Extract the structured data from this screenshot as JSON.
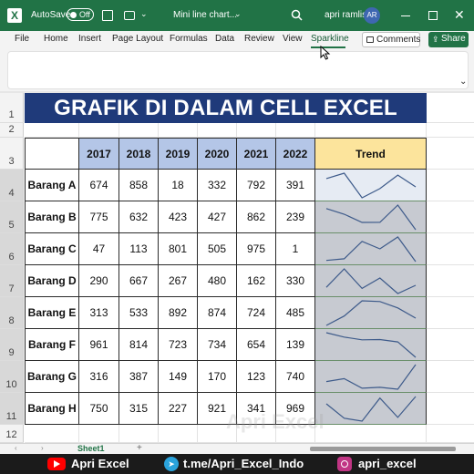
{
  "window": {
    "autosave_label": "AutoSave",
    "autosave_state": "Off",
    "file_title": "Mini line chart...",
    "user_name": "apri ramlis",
    "user_initials": "AR"
  },
  "ribbon": {
    "tabs": [
      "File",
      "Home",
      "Insert",
      "Page Layout",
      "Formulas",
      "Data",
      "Review",
      "View",
      "Sparkline"
    ],
    "active_tab": "Sparkline",
    "comments_label": "Comments",
    "share_label": "Share"
  },
  "sheet": {
    "row_numbers": [
      "1",
      "2",
      "3",
      "4",
      "5",
      "6",
      "7",
      "8",
      "9",
      "10",
      "11",
      "12"
    ],
    "title": "GRAFIK DI DALAM CELL EXCEL",
    "years": [
      "2017",
      "2018",
      "2019",
      "2020",
      "2021",
      "2022"
    ],
    "trend_label": "Trend",
    "items": [
      {
        "name": "Barang A",
        "values": [
          674,
          858,
          18,
          332,
          792,
          391
        ]
      },
      {
        "name": "Barang B",
        "values": [
          775,
          632,
          423,
          427,
          862,
          239
        ]
      },
      {
        "name": "Barang C",
        "values": [
          47,
          113,
          801,
          505,
          975,
          1
        ]
      },
      {
        "name": "Barang D",
        "values": [
          290,
          667,
          267,
          480,
          162,
          330
        ]
      },
      {
        "name": "Barang E",
        "values": [
          313,
          533,
          892,
          874,
          724,
          485
        ]
      },
      {
        "name": "Barang F",
        "values": [
          961,
          814,
          723,
          734,
          654,
          139
        ]
      },
      {
        "name": "Barang G",
        "values": [
          316,
          387,
          149,
          170,
          123,
          740
        ]
      },
      {
        "name": "Barang H",
        "values": [
          750,
          315,
          227,
          921,
          341,
          969
        ]
      }
    ]
  },
  "sheet_tab": "Sheet1",
  "footer": {
    "youtube": "Apri Excel",
    "telegram": "t.me/Apri_Excel_Indo",
    "instagram": "apri_excel"
  },
  "watermark": "Apri Excel",
  "colors": {
    "excel_green": "#217346",
    "title_banner": "#1f3a7a",
    "year_header": "#b4c6e7",
    "trend_header": "#fce49c",
    "sparkline_fill": "#c7cad1",
    "sparkline_line": "#3d5a8a"
  }
}
